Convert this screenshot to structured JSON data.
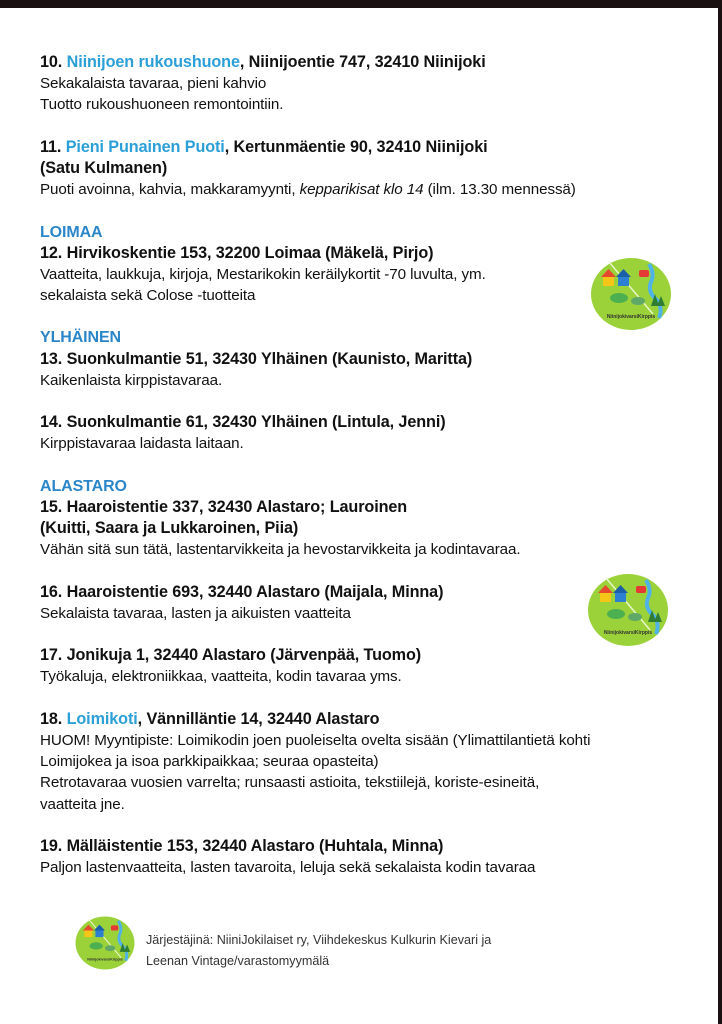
{
  "colors": {
    "accent_blue": "#2b9fd8",
    "section_blue": "#2b86c9",
    "logo_green": "#9bd23a"
  },
  "blocks": [
    {
      "type": "entry",
      "number": "10.",
      "name": "Niinijoen rukoushuone",
      "title": ", Niinijoentie 747, 32410 Niinijoki",
      "body": [
        "Sekakalaista tavaraa, pieni kahvio",
        "Tuotto rukoushuoneen remontointiin."
      ]
    },
    {
      "type": "entry",
      "number": "11.",
      "name": "Pieni Punainen Puoti",
      "title": ", Kertunmäentie 90, 32410 Niinijoki",
      "title2": "(Satu Kulmanen)",
      "body": [
        {
          "before": "Puoti avoinna, kahvia, makkaramyynti, ",
          "italic": "kepparikisat klo 14",
          "after": " (ilm. 13.30 mennessä)"
        }
      ]
    },
    {
      "type": "section",
      "label": "LOIMAA"
    },
    {
      "type": "entry",
      "number": "12.",
      "title": " Hirvikoskentie 153, 32200 Loimaa  (Mäkelä, Pirjo)",
      "body": [
        "Vaatteita, laukkuja, kirjoja, Mestarikokin keräilykortit -70 luvulta, ym.",
        "sekalaista sekä Colose -tuotteita"
      ],
      "nogap": true
    },
    {
      "type": "section",
      "label": "YLHÄINEN"
    },
    {
      "type": "entry",
      "number": "13.",
      "title": " Suonkulmantie 51, 32430 Ylhäinen (Kaunisto, Maritta)",
      "body": [
        "Kaikenlaista kirppistavaraa."
      ]
    },
    {
      "type": "entry",
      "number": "14.",
      "title": " Suonkulmantie 61, 32430 Ylhäinen (Lintula, Jenni)",
      "body": [
        "Kirppistavaraa laidasta laitaan."
      ]
    },
    {
      "type": "section",
      "label": "ALASTARO"
    },
    {
      "type": "entry",
      "number": "15.",
      "title": " Haaroistentie 337, 32430 Alastaro; Lauroinen",
      "title2": "(Kuitti, Saara ja Lukkaroinen, Piia)",
      "body": [
        "Vähän sitä sun tätä, lastentarvikkeita ja hevostarvikkeita ja kodintavaraa."
      ]
    },
    {
      "type": "entry",
      "number": "16.",
      "title": " Haaroistentie 693, 32440 Alastaro (Maijala, Minna)",
      "body": [
        "Sekalaista tavaraa, lasten ja aikuisten vaatteita"
      ]
    },
    {
      "type": "entry",
      "number": "17.",
      "title": " Jonikuja 1, 32440 Alastaro (Järvenpää, Tuomo)",
      "body": [
        "Työkaluja, elektroniikkaa, vaatteita, kodin tavaraa yms."
      ]
    },
    {
      "type": "entry",
      "number": "18.",
      "name": "Loimikoti",
      "title": ", Vännilläntie 14, 32440 Alastaro",
      "body": [
        "HUOM! Myyntipiste: Loimikodin joen puoleiselta ovelta sisään (Ylimattilantietä kohti",
        "Loimijokea ja isoa parkkipaikkaa; seuraa opasteita)",
        "Retrotavaraa vuosien varrelta; runsaasti astioita, tekstiilejä, koriste-esineitä,",
        "vaatteita jne."
      ]
    },
    {
      "type": "entry",
      "number": "19.",
      "title": " Mälläistentie 153, 32440 Alastaro (Huhtala, Minna)",
      "body": [
        "Paljon lastenvaatteita, lasten tavaroita, leluja sekä sekalaista kodin tavaraa"
      ]
    }
  ],
  "logo": {
    "text": "NiinijokivarsiKirppis",
    "icon": "flea-market-logo"
  },
  "footer": {
    "line1": "Järjestäjinä: NiiniJokilaiset ry, Viihdekeskus Kulkurin Kievari ja",
    "line2": "Leenan Vintage/varastomyymälä"
  }
}
